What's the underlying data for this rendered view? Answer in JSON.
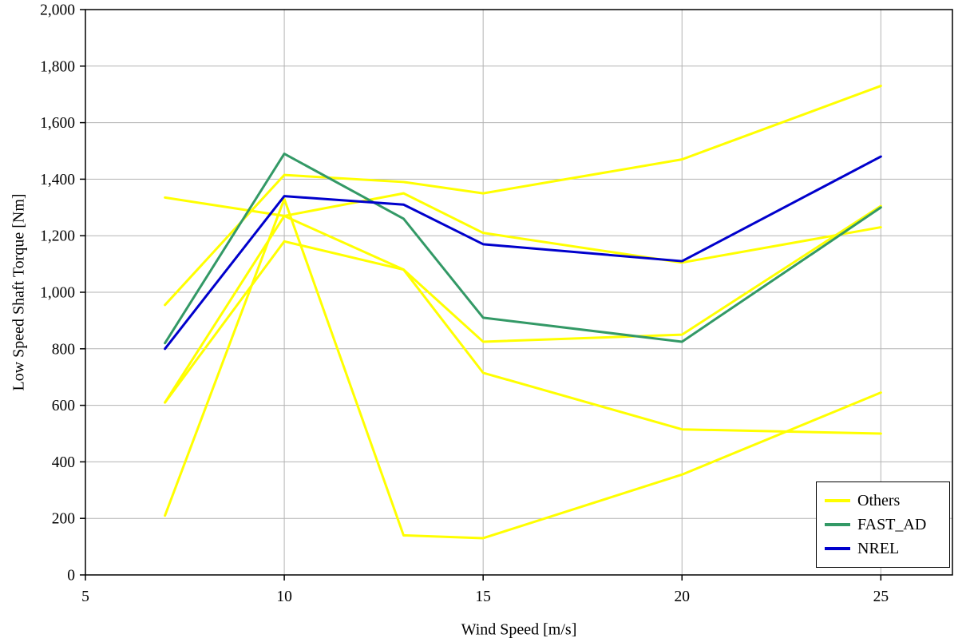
{
  "chart_data": {
    "type": "line",
    "title": "",
    "xlabel": "Wind Speed [m/s]",
    "ylabel": "Low Speed Shaft Torque [Nm]",
    "x": [
      7,
      10,
      13,
      15,
      20,
      25
    ],
    "series": [
      {
        "name": "Others",
        "color": "#FFFF00",
        "values": [
          955,
          1415,
          1390,
          1350,
          1470,
          1730
        ]
      },
      {
        "name": "Others",
        "color": "#FFFF00",
        "values": [
          1335,
          1270,
          1350,
          1210,
          1105,
          1230
        ]
      },
      {
        "name": "Others",
        "color": "#FFFF00",
        "values": [
          610,
          1180,
          1080,
          825,
          850,
          1305
        ]
      },
      {
        "name": "Others",
        "color": "#FFFF00",
        "values": [
          610,
          1270,
          1080,
          715,
          515,
          500
        ]
      },
      {
        "name": "Others",
        "color": "#FFFF00",
        "values": [
          210,
          1330,
          140,
          130,
          355,
          645
        ]
      },
      {
        "name": "FAST_AD",
        "color": "#339966",
        "values": [
          820,
          1490,
          1260,
          910,
          825,
          1300
        ]
      },
      {
        "name": "NREL",
        "color": "#0000CC",
        "values": [
          800,
          1340,
          1310,
          1170,
          1110,
          1480
        ]
      }
    ],
    "xlim": [
      5,
      26.8
    ],
    "ylim": [
      0,
      2000
    ],
    "xticks": [
      5,
      10,
      15,
      20,
      25
    ],
    "ytick_step": 200,
    "grid": true,
    "legend_position": "bottom-right",
    "legend": [
      {
        "label": "Others",
        "color": "#FFFF00"
      },
      {
        "label": "FAST_AD",
        "color": "#339966"
      },
      {
        "label": "NREL",
        "color": "#0000CC"
      }
    ],
    "colors": {
      "gridline": "#b3b3b3",
      "axis": "#000000",
      "background": "#ffffff"
    }
  }
}
